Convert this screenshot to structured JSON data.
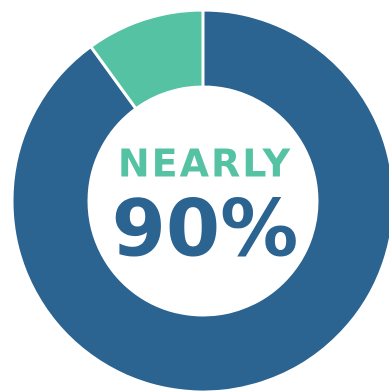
{
  "chart_data": {
    "type": "donut",
    "annotation": "NEARLY",
    "annotation_color": "#55c3a3",
    "categories": [
      null,
      null
    ],
    "values": [
      90,
      10
    ],
    "value_labels": [
      "90%",
      null
    ],
    "colors": [
      "#2b6391",
      "#55c3a3"
    ]
  }
}
